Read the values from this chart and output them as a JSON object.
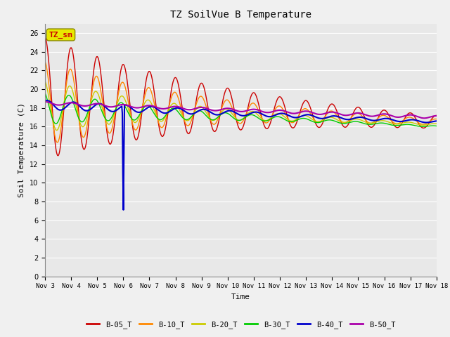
{
  "title": "TZ SoilVue B Temperature",
  "xlabel": "Time",
  "ylabel": "Soil Temperature (C)",
  "ylim": [
    0,
    27
  ],
  "yticks": [
    0,
    2,
    4,
    6,
    8,
    10,
    12,
    14,
    16,
    18,
    20,
    22,
    24,
    26
  ],
  "bg_color": "#f0f0f0",
  "plot_bg_color": "#e8e8e8",
  "annotation_text": "TZ_sm",
  "annotation_facecolor": "#e8e800",
  "annotation_edgecolor": "#888800",
  "annotation_textcolor": "#cc0000",
  "series_colors": {
    "B-05_T": "#cc0000",
    "B-10_T": "#ff8800",
    "B-20_T": "#cccc00",
    "B-30_T": "#00cc00",
    "B-40_T": "#0000cc",
    "B-50_T": "#aa00aa"
  },
  "series_lw": {
    "B-05_T": 1.0,
    "B-10_T": 1.0,
    "B-20_T": 1.0,
    "B-30_T": 1.0,
    "B-40_T": 1.5,
    "B-50_T": 1.5
  },
  "n_days": 15,
  "spike_day": 3.0,
  "spike_value": 5.8
}
